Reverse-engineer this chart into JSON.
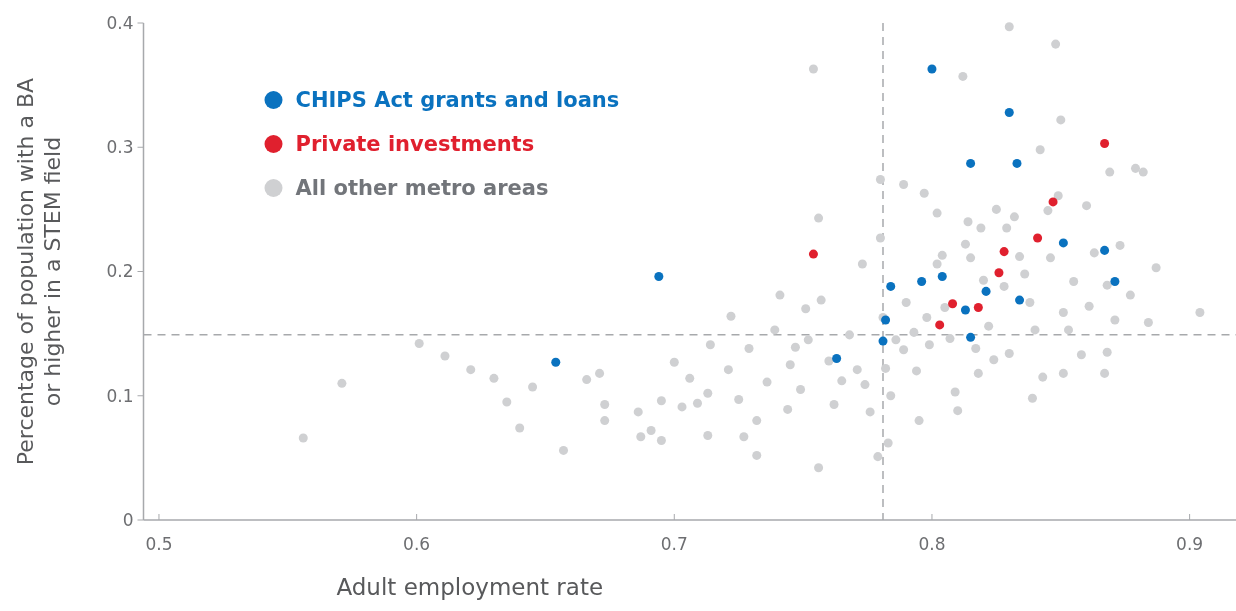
{
  "chart_data": {
    "type": "scatter",
    "xlabel": "Adult employment rate",
    "ylabel": "Percentage of population with a BA\nor higher in a STEM field",
    "xlim": [
      0.494,
      0.918
    ],
    "xticks": [
      0.5,
      0.6,
      0.7,
      0.8,
      0.9
    ],
    "ylim": [
      0,
      0.4
    ],
    "yticks": [
      0,
      0.1,
      0.2,
      0.3,
      0.4
    ],
    "grid": false,
    "legend": "top left",
    "marker": "circle",
    "ref_lines": [
      {
        "axis": "x",
        "value": 0.781,
        "color": "#a7a9ac",
        "line_style": "dashed"
      },
      {
        "axis": "y",
        "value": 0.149,
        "color": "#a7a9ac",
        "line_style": "dashed"
      }
    ],
    "series": [
      {
        "name": "CHIPS Act grants and loans",
        "color": "#0a72bf",
        "x": [
          0.654,
          0.694,
          0.8,
          0.83,
          0.815,
          0.833,
          0.851,
          0.867,
          0.871,
          0.784,
          0.796,
          0.804,
          0.821,
          0.834,
          0.813,
          0.782,
          0.781,
          0.815,
          0.763
        ],
        "values": [
          0.127,
          0.196,
          0.363,
          0.328,
          0.287,
          0.287,
          0.223,
          0.217,
          0.192,
          0.188,
          0.192,
          0.196,
          0.184,
          0.177,
          0.169,
          0.161,
          0.144,
          0.147,
          0.13
        ]
      },
      {
        "name": "Private investments",
        "color": "#e0202e",
        "x": [
          0.754,
          0.867,
          0.847,
          0.841,
          0.828,
          0.826,
          0.808,
          0.818,
          0.803
        ],
        "values": [
          0.214,
          0.303,
          0.256,
          0.227,
          0.216,
          0.199,
          0.174,
          0.171,
          0.157
        ]
      },
      {
        "name": "All other metro areas",
        "color": "#cfd0d2",
        "x": [
          0.556,
          0.571,
          0.601,
          0.611,
          0.621,
          0.63,
          0.635,
          0.64,
          0.645,
          0.657,
          0.666,
          0.671,
          0.673,
          0.673,
          0.687,
          0.686,
          0.691,
          0.695,
          0.695,
          0.7,
          0.703,
          0.706,
          0.709,
          0.713,
          0.713,
          0.722,
          0.721,
          0.725,
          0.727,
          0.729,
          0.732,
          0.732,
          0.736,
          0.739,
          0.741,
          0.744,
          0.745,
          0.747,
          0.749,
          0.751,
          0.752,
          0.754,
          0.756,
          0.756,
          0.757,
          0.76,
          0.762,
          0.765,
          0.768,
          0.771,
          0.773,
          0.776,
          0.779,
          0.78,
          0.78,
          0.781,
          0.782,
          0.783,
          0.784,
          0.786,
          0.789,
          0.789,
          0.79,
          0.793,
          0.794,
          0.795,
          0.797,
          0.798,
          0.799,
          0.802,
          0.802,
          0.805,
          0.807,
          0.809,
          0.81,
          0.812,
          0.813,
          0.814,
          0.815,
          0.817,
          0.818,
          0.819,
          0.82,
          0.822,
          0.824,
          0.825,
          0.828,
          0.829,
          0.83,
          0.83,
          0.832,
          0.834,
          0.836,
          0.838,
          0.84,
          0.842,
          0.843,
          0.845,
          0.846,
          0.848,
          0.849,
          0.851,
          0.851,
          0.853,
          0.855,
          0.858,
          0.86,
          0.861,
          0.863,
          0.867,
          0.868,
          0.869,
          0.871,
          0.873,
          0.877,
          0.879,
          0.882,
          0.884,
          0.887,
          0.904,
          0.868,
          0.85,
          0.839,
          0.804,
          0.774,
          0.714
        ],
        "values": [
          0.066,
          0.11,
          0.142,
          0.132,
          0.121,
          0.114,
          0.095,
          0.074,
          0.107,
          0.056,
          0.113,
          0.118,
          0.093,
          0.08,
          0.067,
          0.087,
          0.072,
          0.064,
          0.096,
          0.127,
          0.091,
          0.114,
          0.094,
          0.102,
          0.068,
          0.164,
          0.121,
          0.097,
          0.067,
          0.138,
          0.08,
          0.052,
          0.111,
          0.153,
          0.181,
          0.089,
          0.125,
          0.139,
          0.105,
          0.17,
          0.145,
          0.363,
          0.243,
          0.042,
          0.177,
          0.128,
          0.093,
          0.112,
          0.149,
          0.121,
          0.206,
          0.087,
          0.051,
          0.227,
          0.274,
          0.163,
          0.122,
          0.062,
          0.1,
          0.145,
          0.27,
          0.137,
          0.175,
          0.151,
          0.12,
          0.08,
          0.263,
          0.163,
          0.141,
          0.206,
          0.247,
          0.171,
          0.146,
          0.103,
          0.088,
          0.357,
          0.222,
          0.24,
          0.211,
          0.138,
          0.118,
          0.235,
          0.193,
          0.156,
          0.129,
          0.25,
          0.188,
          0.235,
          0.397,
          0.134,
          0.244,
          0.212,
          0.198,
          0.175,
          0.153,
          0.298,
          0.115,
          0.249,
          0.211,
          0.383,
          0.261,
          0.167,
          0.118,
          0.153,
          0.192,
          0.133,
          0.253,
          0.172,
          0.215,
          0.118,
          0.135,
          0.28,
          0.161,
          0.221,
          0.181,
          0.283,
          0.28,
          0.159,
          0.203,
          0.167,
          0.189,
          0.322,
          0.098,
          0.213,
          0.109,
          0.141
        ]
      }
    ]
  }
}
